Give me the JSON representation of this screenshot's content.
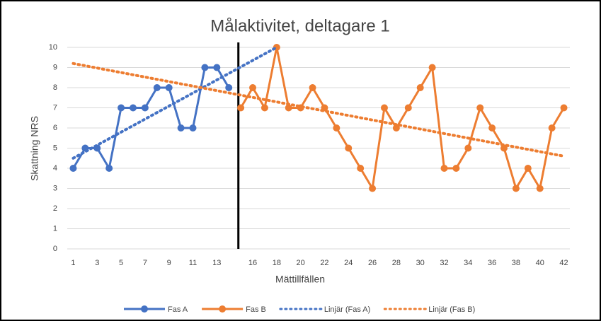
{
  "chart_data": {
    "type": "line",
    "title": "Målaktivitet, deltagare 1",
    "x_label": "Mättillfällen",
    "y_label": "Skattning NRS",
    "xlim": [
      0.5,
      42.5
    ],
    "ylim": [
      0,
      10
    ],
    "xticks": [
      1,
      3,
      5,
      7,
      9,
      11,
      13,
      16,
      18,
      20,
      22,
      24,
      26,
      28,
      30,
      32,
      34,
      36,
      38,
      40,
      42
    ],
    "yticks": [
      0,
      1,
      2,
      3,
      4,
      5,
      6,
      7,
      8,
      9,
      10
    ],
    "grid": true,
    "phase_line_x": 14.8,
    "legend": "bottom",
    "series": [
      {
        "name": "Fas A",
        "color": "#4472c4",
        "style": "solid",
        "markers": true,
        "x": [
          1,
          2,
          3,
          4,
          5,
          6,
          7,
          8,
          9,
          10,
          11,
          12,
          13,
          14
        ],
        "values": [
          4,
          5,
          5,
          4,
          7,
          7,
          7,
          8,
          8,
          6,
          6,
          9,
          9,
          8
        ]
      },
      {
        "name": "Fas B",
        "color": "#ed7d31",
        "style": "solid",
        "markers": true,
        "x": [
          15,
          16,
          17,
          18,
          19,
          20,
          21,
          22,
          23,
          24,
          25,
          26,
          27,
          28,
          29,
          30,
          31,
          32,
          33,
          34,
          35,
          36,
          37,
          38,
          39,
          40,
          41,
          42
        ],
        "values": [
          7,
          8,
          7,
          10,
          7,
          7,
          8,
          7,
          6,
          5,
          4,
          3,
          7,
          6,
          7,
          8,
          9,
          4,
          4,
          5,
          7,
          6,
          5,
          3,
          4,
          3,
          6,
          7
        ]
      },
      {
        "name": "Linjär (Fas A)",
        "color": "#4472c4",
        "style": "dotted",
        "markers": false,
        "x": [
          1,
          18
        ],
        "values": [
          4.5,
          10
        ]
      },
      {
        "name": "Linjär (Fas B)",
        "color": "#ed7d31",
        "style": "dotted",
        "markers": false,
        "x": [
          1,
          42
        ],
        "values": [
          9.2,
          4.6
        ]
      }
    ]
  }
}
